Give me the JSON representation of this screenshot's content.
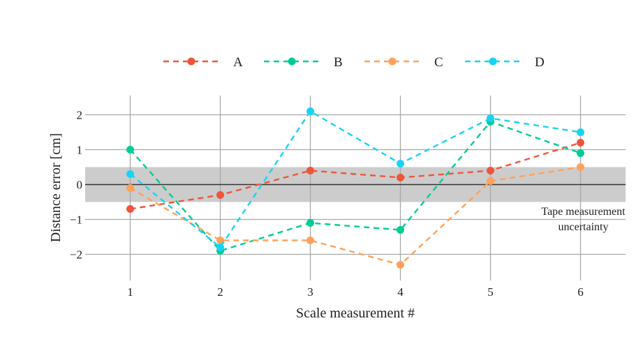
{
  "chart_data": {
    "type": "line",
    "title": "",
    "xlabel": "Scale measurement #",
    "ylabel": "Distance error [cm]",
    "x": [
      1,
      2,
      3,
      4,
      5,
      6
    ],
    "xticks": [
      "1",
      "2",
      "3",
      "4",
      "5",
      "6"
    ],
    "yticks": [
      -2,
      -1,
      0,
      1,
      2
    ],
    "ytick_labels": [
      "−2",
      "−1",
      "0",
      "1",
      "2"
    ],
    "xlim": [
      0.5,
      6.5
    ],
    "ylim": [
      -2.75,
      2.55
    ],
    "grid": true,
    "legend_position": "top",
    "band": {
      "y0": -0.5,
      "y1": 0.5,
      "color": "#cccccc"
    },
    "annotation": {
      "lines": [
        "Tape measurement",
        "uncertainty"
      ],
      "x": 6,
      "y": -0.75
    },
    "series": [
      {
        "name": "A",
        "color": "#ef553b",
        "values": [
          -0.7,
          -0.3,
          0.4,
          0.2,
          0.4,
          1.2
        ]
      },
      {
        "name": "B",
        "color": "#00cc96",
        "values": [
          1.0,
          -1.9,
          -1.1,
          -1.3,
          1.8,
          0.9
        ]
      },
      {
        "name": "C",
        "color": "#ffa15a",
        "values": [
          -0.1,
          -1.6,
          -1.6,
          -2.3,
          0.1,
          0.5
        ]
      },
      {
        "name": "D",
        "color": "#19d3f3",
        "values": [
          0.3,
          -1.8,
          2.1,
          0.6,
          1.9,
          1.5
        ]
      }
    ]
  }
}
